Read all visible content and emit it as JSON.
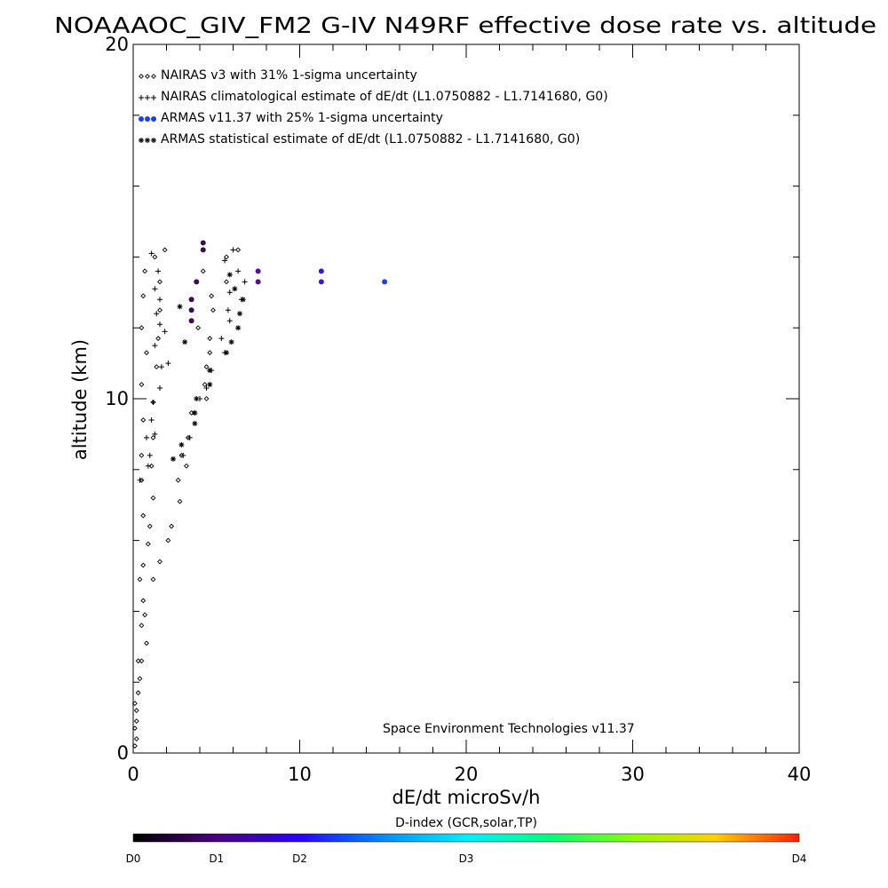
{
  "chart_data": {
    "type": "scatter",
    "title": "NOAAAOC_GIV_FM2 G-IV   N49RF  effective dose rate vs. altitude",
    "xlabel": "dE/dt microSv/h",
    "ylabel": "altitude (km)",
    "xlim": [
      0,
      40
    ],
    "ylim": [
      0,
      20
    ],
    "x_ticks": [
      "0",
      "10",
      "20",
      "30",
      "40"
    ],
    "y_ticks": [
      "0",
      "10",
      "20"
    ],
    "grid": false,
    "legend_position": "top-left",
    "credit": "Space Environment Technologies v11.37",
    "legend": [
      {
        "label": "NAIRAS v3 with 31% 1-sigma uncertainty",
        "marker": "diamond"
      },
      {
        "label": "NAIRAS climatological estimate of dE/dt (L1.0750882 - L1.7141680, G0)",
        "marker": "plus"
      },
      {
        "label": "ARMAS v11.37 with 25% 1-sigma uncertainty",
        "marker": "dot",
        "color": "#1a3cff"
      },
      {
        "label": "ARMAS statistical estimate of dE/dt (L1.0750882 - L1.7141680, G0)",
        "marker": "asterisk"
      }
    ],
    "series": [
      {
        "name": "NAIRAS v3 with 31% 1-sigma uncertainty",
        "marker": "diamond",
        "points": [
          [
            0.1,
            0.2
          ],
          [
            0.2,
            0.4
          ],
          [
            0.1,
            0.7
          ],
          [
            0.2,
            0.9
          ],
          [
            0.2,
            1.2
          ],
          [
            0.1,
            1.4
          ],
          [
            0.3,
            1.7
          ],
          [
            0.4,
            2.1
          ],
          [
            0.3,
            2.6
          ],
          [
            0.5,
            2.6
          ],
          [
            0.8,
            3.1
          ],
          [
            0.5,
            3.6
          ],
          [
            0.7,
            3.9
          ],
          [
            0.6,
            4.3
          ],
          [
            0.4,
            4.9
          ],
          [
            1.2,
            4.9
          ],
          [
            0.6,
            5.3
          ],
          [
            1.6,
            5.4
          ],
          [
            0.9,
            5.9
          ],
          [
            2.1,
            6.0
          ],
          [
            1.0,
            6.4
          ],
          [
            2.3,
            6.4
          ],
          [
            0.6,
            6.7
          ],
          [
            1.2,
            7.2
          ],
          [
            2.8,
            7.1
          ],
          [
            0.5,
            7.7
          ],
          [
            2.7,
            7.7
          ],
          [
            1.1,
            8.1
          ],
          [
            3.2,
            8.1
          ],
          [
            0.5,
            8.4
          ],
          [
            2.9,
            8.4
          ],
          [
            1.2,
            8.9
          ],
          [
            3.3,
            8.9
          ],
          [
            0.6,
            9.4
          ],
          [
            3.5,
            9.6
          ],
          [
            1.2,
            9.9
          ],
          [
            4.4,
            10.0
          ],
          [
            0.5,
            10.4
          ],
          [
            4.3,
            10.4
          ],
          [
            1.4,
            10.9
          ],
          [
            4.4,
            10.9
          ],
          [
            0.8,
            11.3
          ],
          [
            4.6,
            11.3
          ],
          [
            1.5,
            11.7
          ],
          [
            4.6,
            11.7
          ],
          [
            0.5,
            12.0
          ],
          [
            3.9,
            12.0
          ],
          [
            1.6,
            12.5
          ],
          [
            4.8,
            12.5
          ],
          [
            0.6,
            12.9
          ],
          [
            4.7,
            12.9
          ],
          [
            1.6,
            13.3
          ],
          [
            5.6,
            13.3
          ],
          [
            0.7,
            13.6
          ],
          [
            4.2,
            13.6
          ],
          [
            1.3,
            14.0
          ],
          [
            5.6,
            14.0
          ],
          [
            1.9,
            14.2
          ],
          [
            6.3,
            14.2
          ]
        ]
      },
      {
        "name": "NAIRAS climatological estimate of dE/dt (L1.0750882 - L1.7141680, G0)",
        "marker": "plus",
        "points": [
          [
            0.4,
            7.7
          ],
          [
            0.9,
            8.1
          ],
          [
            1.0,
            8.4
          ],
          [
            0.8,
            8.9
          ],
          [
            1.3,
            9.0
          ],
          [
            1.1,
            9.4
          ],
          [
            1.2,
            9.9
          ],
          [
            1.6,
            10.3
          ],
          [
            1.7,
            10.9
          ],
          [
            2.1,
            11.0
          ],
          [
            1.3,
            11.5
          ],
          [
            1.9,
            11.9
          ],
          [
            1.6,
            12.1
          ],
          [
            1.4,
            12.4
          ],
          [
            1.6,
            12.8
          ],
          [
            1.3,
            13.1
          ],
          [
            1.5,
            13.6
          ],
          [
            1.1,
            14.1
          ],
          [
            3.0,
            8.4
          ],
          [
            3.4,
            8.9
          ],
          [
            3.7,
            9.6
          ],
          [
            4.0,
            10.0
          ],
          [
            4.4,
            10.3
          ],
          [
            4.7,
            10.8
          ],
          [
            5.5,
            11.3
          ],
          [
            5.3,
            11.7
          ],
          [
            5.8,
            12.2
          ],
          [
            5.7,
            12.5
          ],
          [
            6.5,
            12.8
          ],
          [
            5.8,
            13.0
          ],
          [
            6.7,
            13.3
          ],
          [
            6.3,
            13.6
          ],
          [
            5.5,
            13.9
          ],
          [
            6.0,
            14.2
          ]
        ]
      },
      {
        "name": "ARMAS v11.37 with 25% 1-sigma uncertainty",
        "marker": "dot",
        "color": "#1a3cff",
        "points": [
          [
            11.3,
            13.6
          ],
          [
            11.3,
            13.3
          ],
          [
            15.1,
            13.3
          ],
          [
            7.5,
            13.6
          ],
          [
            7.5,
            13.3
          ],
          [
            4.2,
            14.4
          ],
          [
            4.2,
            14.2
          ],
          [
            3.8,
            13.3
          ],
          [
            3.5,
            12.8
          ],
          [
            3.5,
            12.5
          ],
          [
            3.5,
            12.2
          ]
        ]
      },
      {
        "name": "ARMAS statistical estimate of dE/dt (L1.0750882 - L1.7141680, G0)",
        "marker": "asterisk",
        "points": [
          [
            2.4,
            8.3
          ],
          [
            2.9,
            8.7
          ],
          [
            3.7,
            9.3
          ],
          [
            3.7,
            9.6
          ],
          [
            3.8,
            10.0
          ],
          [
            4.6,
            10.4
          ],
          [
            4.6,
            10.8
          ],
          [
            5.6,
            11.3
          ],
          [
            5.9,
            11.6
          ],
          [
            6.3,
            12.0
          ],
          [
            6.4,
            12.4
          ],
          [
            6.6,
            12.8
          ],
          [
            6.1,
            13.1
          ],
          [
            5.8,
            13.5
          ],
          [
            2.8,
            12.6
          ],
          [
            3.1,
            11.6
          ]
        ]
      }
    ],
    "colorbar": {
      "label": "D-index (GCR,solar,TP)",
      "tick_labels": [
        "D0",
        "D1",
        "D2",
        "D3",
        "D4"
      ],
      "tick_values": [
        0,
        0.25,
        0.5,
        1.0,
        2.0
      ],
      "range": [
        0,
        2.0
      ]
    }
  }
}
